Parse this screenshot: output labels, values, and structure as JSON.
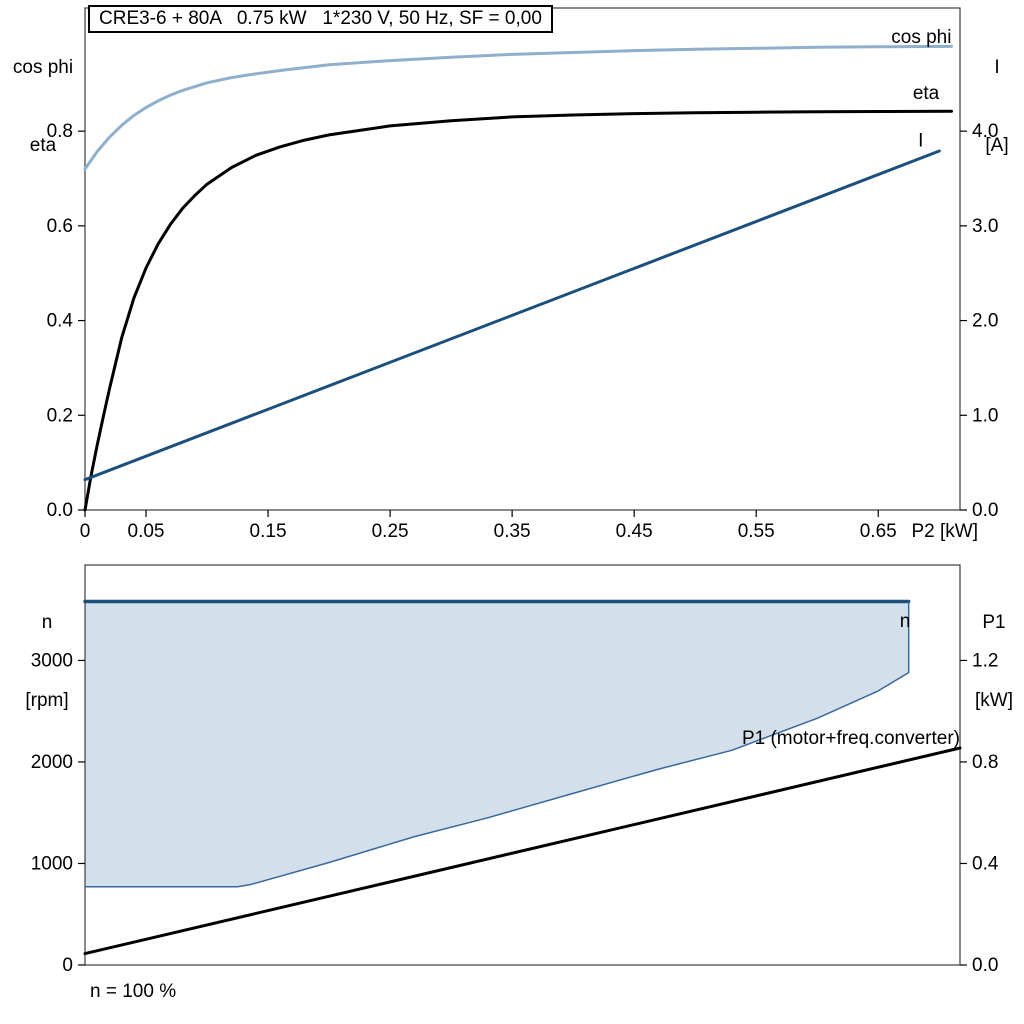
{
  "title_box": {
    "text": "CRE3-6 + 80A   0.75 kW   1*230 V, 50 Hz, SF = 0,00"
  },
  "footnote": {
    "text": "n = 100 %"
  },
  "axis_corner_labels": {
    "top_chart_left": [
      "cos phi",
      "eta"
    ],
    "top_chart_right": [
      "I",
      "[A]"
    ],
    "bottom_chart_left": [
      "n",
      "[rpm]"
    ],
    "bottom_chart_right": [
      "P1",
      "[kW]"
    ]
  },
  "colors": {
    "cos_phi_line": "#8fafcc",
    "eta_line": "#000000",
    "current_line": "#1b4f7c",
    "speed_top_line": "#1b4f7c",
    "speed_boundary_line": "#38699b",
    "speed_region_fill": "#d3dfeb",
    "p1_line": "#000000",
    "frame": "#3c3c3c"
  },
  "chart_data": [
    {
      "type": "line",
      "name": "motor-performance",
      "plot": {
        "l": 85,
        "t": 8,
        "r": 960,
        "b": 510
      },
      "x_axis": {
        "min": 0,
        "max": 0.717,
        "label": "P2 [kW]",
        "ticks": [
          [
            0,
            "0"
          ],
          [
            0.05,
            "0.05"
          ],
          [
            0.15,
            "0.15"
          ],
          [
            0.25,
            "0.25"
          ],
          [
            0.35,
            "0.35"
          ],
          [
            0.45,
            "0.45"
          ],
          [
            0.55,
            "0.55"
          ],
          [
            0.65,
            "0.65"
          ]
        ]
      },
      "y_left": {
        "min": 0,
        "max": 1.06,
        "ticks": [
          [
            0,
            "0.0"
          ],
          [
            0.2,
            "0.2"
          ],
          [
            0.4,
            "0.4"
          ],
          [
            0.6,
            "0.6"
          ],
          [
            0.8,
            "0.8"
          ]
        ]
      },
      "y_right": {
        "min": 0,
        "max": 5.3,
        "ticks": [
          [
            0,
            "0.0"
          ],
          [
            1,
            "1.0"
          ],
          [
            2,
            "2.0"
          ],
          [
            3,
            "3.0"
          ],
          [
            4,
            "4.0"
          ]
        ]
      },
      "series": [
        {
          "name": "cos-phi",
          "axis": "left",
          "color": "#8fafcc",
          "width": 3,
          "points": [
            [
              0,
              0.72
            ],
            [
              0.01,
              0.757
            ],
            [
              0.02,
              0.787
            ],
            [
              0.03,
              0.812
            ],
            [
              0.04,
              0.833
            ],
            [
              0.05,
              0.85
            ],
            [
              0.06,
              0.864
            ],
            [
              0.07,
              0.876
            ],
            [
              0.08,
              0.886
            ],
            [
              0.1,
              0.902
            ],
            [
              0.12,
              0.913
            ],
            [
              0.14,
              0.921
            ],
            [
              0.16,
              0.928
            ],
            [
              0.2,
              0.94
            ],
            [
              0.25,
              0.949
            ],
            [
              0.3,
              0.956
            ],
            [
              0.35,
              0.962
            ],
            [
              0.4,
              0.966
            ],
            [
              0.45,
              0.97
            ],
            [
              0.5,
              0.973
            ],
            [
              0.55,
              0.975
            ],
            [
              0.6,
              0.977
            ],
            [
              0.65,
              0.978
            ],
            [
              0.71,
              0.979
            ]
          ]
        },
        {
          "name": "eta",
          "axis": "left",
          "color": "#000000",
          "width": 3,
          "points": [
            [
              0,
              0
            ],
            [
              0.005,
              0.073
            ],
            [
              0.01,
              0.137
            ],
            [
              0.015,
              0.197
            ],
            [
              0.02,
              0.255
            ],
            [
              0.03,
              0.363
            ],
            [
              0.04,
              0.447
            ],
            [
              0.05,
              0.511
            ],
            [
              0.06,
              0.562
            ],
            [
              0.07,
              0.603
            ],
            [
              0.08,
              0.637
            ],
            [
              0.09,
              0.664
            ],
            [
              0.1,
              0.688
            ],
            [
              0.12,
              0.723
            ],
            [
              0.14,
              0.749
            ],
            [
              0.16,
              0.767
            ],
            [
              0.18,
              0.781
            ],
            [
              0.2,
              0.792
            ],
            [
              0.25,
              0.811
            ],
            [
              0.3,
              0.822
            ],
            [
              0.35,
              0.83
            ],
            [
              0.4,
              0.834
            ],
            [
              0.45,
              0.837
            ],
            [
              0.5,
              0.839
            ],
            [
              0.55,
              0.84
            ],
            [
              0.6,
              0.841
            ],
            [
              0.65,
              0.8415
            ],
            [
              0.71,
              0.842
            ]
          ]
        },
        {
          "name": "current",
          "axis": "right",
          "color": "#1b4f7c",
          "width": 3,
          "points": [
            [
              0,
              0.32
            ],
            [
              0.7,
              3.79
            ]
          ]
        }
      ],
      "labels": [
        {
          "text": "cos phi",
          "x": 0.71,
          "y": 0.986,
          "axis": "left",
          "color": "#8fafcc",
          "anchor": "end"
        },
        {
          "text": "eta",
          "x": 0.7,
          "y": 0.868,
          "axis": "left",
          "color": "#000000",
          "anchor": "end"
        },
        {
          "text": "I",
          "x": 0.687,
          "y": 3.84,
          "axis": "right",
          "color": "#1b4f7c",
          "anchor": "end"
        }
      ]
    },
    {
      "type": "line",
      "name": "speed-and-input-power",
      "plot": {
        "l": 85,
        "t": 10,
        "r": 960,
        "b": 410
      },
      "x_axis": {
        "min": 0,
        "max": 0.717,
        "label": "",
        "ticks": []
      },
      "y_left": {
        "min": 0,
        "max": 3940,
        "ticks": [
          [
            0,
            "0"
          ],
          [
            1000,
            "1000"
          ],
          [
            2000,
            "2000"
          ],
          [
            3000,
            "3000"
          ]
        ]
      },
      "y_right": {
        "min": 0,
        "max": 1.576,
        "ticks": [
          [
            0,
            "0.0"
          ],
          [
            0.4,
            "0.4"
          ],
          [
            0.8,
            "0.8"
          ],
          [
            1.2,
            "1.2"
          ]
        ]
      },
      "region": {
        "axis": "left",
        "fill": "#d3dfeb",
        "points": [
          [
            0,
            3580
          ],
          [
            0.675,
            3580
          ],
          [
            0.675,
            2880
          ],
          [
            0.65,
            2700
          ],
          [
            0.6,
            2430
          ],
          [
            0.53,
            2115
          ],
          [
            0.47,
            1930
          ],
          [
            0.4,
            1690
          ],
          [
            0.33,
            1450
          ],
          [
            0.27,
            1265
          ],
          [
            0.2,
            1010
          ],
          [
            0.135,
            790
          ],
          [
            0.125,
            770
          ],
          [
            0,
            770
          ]
        ]
      },
      "series": [
        {
          "name": "speed-max",
          "axis": "left",
          "color": "#1b4f7c",
          "width": 3.5,
          "points": [
            [
              0,
              3580
            ],
            [
              0.675,
              3580
            ]
          ]
        },
        {
          "name": "speed-min-boundary",
          "axis": "left",
          "color": "#38699b",
          "width": 1.5,
          "points": [
            [
              0,
              770
            ],
            [
              0.125,
              770
            ],
            [
              0.135,
              790
            ],
            [
              0.2,
              1010
            ],
            [
              0.27,
              1265
            ],
            [
              0.33,
              1450
            ],
            [
              0.4,
              1690
            ],
            [
              0.47,
              1930
            ],
            [
              0.53,
              2115
            ],
            [
              0.6,
              2430
            ],
            [
              0.65,
              2700
            ],
            [
              0.675,
              2880
            ],
            [
              0.675,
              3580
            ]
          ]
        },
        {
          "name": "p1",
          "axis": "right",
          "color": "#000000",
          "width": 3,
          "points": [
            [
              0,
              0.045
            ],
            [
              0.717,
              0.855
            ]
          ]
        }
      ],
      "labels": [
        {
          "text": "n",
          "x": 0.672,
          "y": 3330,
          "axis": "left",
          "color": "#1b4f7c",
          "anchor": "middle"
        },
        {
          "text": "P1 (motor+freq.converter)",
          "x": 0.717,
          "y": 0.87,
          "axis": "right",
          "color": "#000000",
          "anchor": "end"
        }
      ]
    }
  ]
}
